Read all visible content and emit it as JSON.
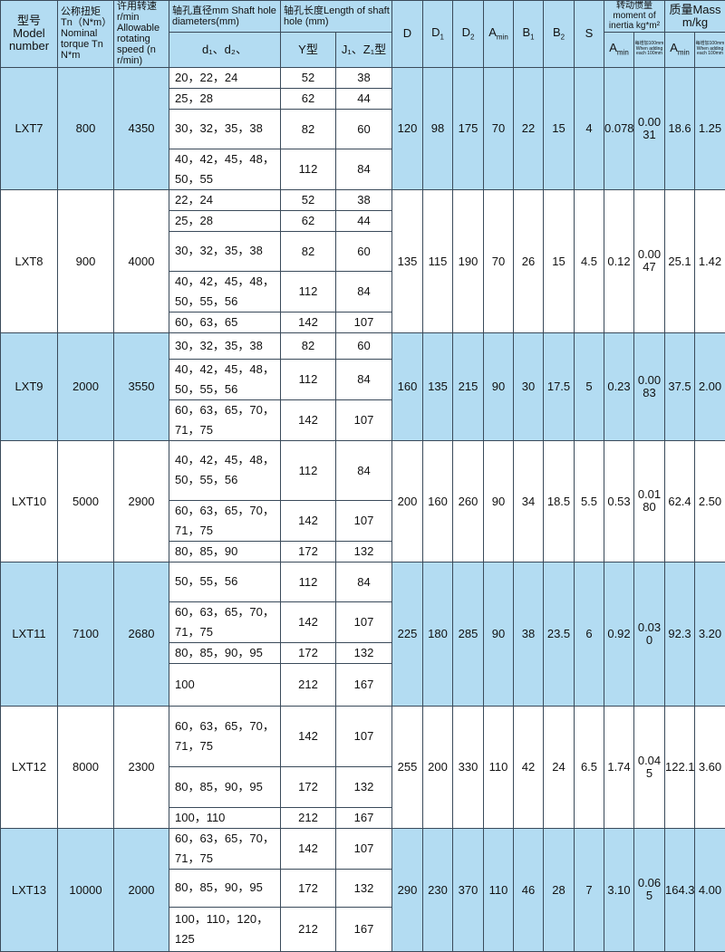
{
  "header": {
    "model": "型号 Model number",
    "torque": "公称扭矩 Tn（N*m） Nominal torque Tn N*m",
    "speed": "许用转速 r/min Allowable rotating speed (n r/min)",
    "shaft_diam": "轴孔直径mm Shaft hole diameters(mm)",
    "shaft_len": "轴孔长度Length of shaft hole (mm)",
    "d12": "d₁、d₂、",
    "y": "Y型",
    "jz": "J₁、Z₁型",
    "D": "D",
    "D1": "D",
    "D1_sub": "1",
    "D2": "D",
    "D2_sub": "2",
    "Amin": "A",
    "Amin_sub": "min",
    "B1": "B",
    "B1_sub": "1",
    "B2": "B",
    "B2_sub": "2",
    "S": "S",
    "inertia": "转动惯量moment of inertia kg*m²",
    "mass": "质量Mass m/kg",
    "inertia_amin": "A",
    "mass_amin": "A",
    "sub_min": "min",
    "adding": "每增加100mm When adding each 100mm"
  },
  "groups": [
    {
      "model": "LXT7",
      "torque": "800",
      "speed": "4350",
      "rows": [
        {
          "d": "20，22，24",
          "y": "52",
          "j": "38"
        },
        {
          "d": "25，28",
          "y": "62",
          "j": "44"
        },
        {
          "d": "30，32，35，38",
          "y": "82",
          "j": "60"
        },
        {
          "d": "40，42，45，48，\n50，55",
          "y": "112",
          "j": "84"
        }
      ],
      "D": "120",
      "D1": "98",
      "D2": "175",
      "Amin": "70",
      "B1": "22",
      "B2": "15",
      "S": "4",
      "inertia": "0.078",
      "inertia_add": "0.0031",
      "mass": "18.6",
      "mass_add": "1.25"
    },
    {
      "model": "LXT8",
      "torque": "900",
      "speed": "4000",
      "rows": [
        {
          "d": "22，24",
          "y": "52",
          "j": "38"
        },
        {
          "d": "25，28",
          "y": "62",
          "j": "44"
        },
        {
          "d": "30，32，35，38",
          "y": "82",
          "j": "60"
        },
        {
          "d": "40，42，45，48，\n50，55，56",
          "y": "112",
          "j": "84"
        },
        {
          "d": "60，63，65",
          "y": "142",
          "j": "107"
        }
      ],
      "D": "135",
      "D1": "115",
      "D2": "190",
      "Amin": "70",
      "B1": "26",
      "B2": "15",
      "S": "4.5",
      "inertia": "0.12",
      "inertia_add": "0.0047",
      "mass": "25.1",
      "mass_add": "1.42"
    },
    {
      "model": "LXT9",
      "torque": "2000",
      "speed": "3550",
      "rows": [
        {
          "d": "30，32，35，38",
          "y": "82",
          "j": "60"
        },
        {
          "d": "40，42，45，48，\n50，55，56",
          "y": "112",
          "j": "84"
        },
        {
          "d": "60，63，65，70，\n71，75",
          "y": "142",
          "j": "107"
        }
      ],
      "D": "160",
      "D1": "135",
      "D2": "215",
      "Amin": "90",
      "B1": "30",
      "B2": "17.5",
      "S": "5",
      "inertia": "0.23",
      "inertia_add": "0.0083",
      "mass": "37.5",
      "mass_add": "2.00"
    },
    {
      "model": "LXT10",
      "torque": "5000",
      "speed": "2900",
      "rows": [
        {
          "d": "40，42，45，48，\n50，55，56",
          "y": "112",
          "j": "84"
        },
        {
          "d": "60，63，65，70，\n71，75",
          "y": "142",
          "j": "107"
        },
        {
          "d": "80，85，90",
          "y": "172",
          "j": "132"
        }
      ],
      "D": "200",
      "D1": "160",
      "D2": "260",
      "Amin": "90",
      "B1": "34",
      "B2": "18.5",
      "S": "5.5",
      "inertia": "0.53",
      "inertia_add": "0.0180",
      "mass": "62.4",
      "mass_add": "2.50"
    },
    {
      "model": "LXT11",
      "torque": "7100",
      "speed": "2680",
      "rows": [
        {
          "d": "50，55，56",
          "y": "112",
          "j": "84"
        },
        {
          "d": "60，63，65，70，\n71，75",
          "y": "142",
          "j": "107"
        },
        {
          "d": "80，85，90，95",
          "y": "172",
          "j": "132"
        },
        {
          "d": "100",
          "y": "212",
          "j": "167"
        }
      ],
      "D": "225",
      "D1": "180",
      "D2": "285",
      "Amin": "90",
      "B1": "38",
      "B2": "23.5",
      "S": "6",
      "inertia": "0.92",
      "inertia_add": "0.030",
      "mass": "92.3",
      "mass_add": "3.20"
    },
    {
      "model": "LXT12",
      "torque": "8000",
      "speed": "2300",
      "rows": [
        {
          "d": "60，63，65，70，\n71，75",
          "y": "142",
          "j": "107"
        },
        {
          "d": "80，85，90，95",
          "y": "172",
          "j": "132"
        },
        {
          "d": "100，110",
          "y": "212",
          "j": "167"
        }
      ],
      "D": "255",
      "D1": "200",
      "D2": "330",
      "Amin": "110",
      "B1": "42",
      "B2": "24",
      "S": "6.5",
      "inertia": "1.74",
      "inertia_add": "0.045",
      "mass": "122.1",
      "mass_add": "3.60"
    },
    {
      "model": "LXT13",
      "torque": "10000",
      "speed": "2000",
      "rows": [
        {
          "d": "60，63，65，70，\n71，75",
          "y": "142",
          "j": "107"
        },
        {
          "d": "80，85，90，95",
          "y": "172",
          "j": "132"
        },
        {
          "d": "100，110，120，\n125",
          "y": "212",
          "j": "167"
        }
      ],
      "D": "290",
      "D1": "230",
      "D2": "370",
      "Amin": "110",
      "B1": "46",
      "B2": "28",
      "S": "7",
      "inertia": "3.10",
      "inertia_add": "0.065",
      "mass": "164.3",
      "mass_add": "4.00"
    }
  ],
  "colors": {
    "header_bg": "#b3dcf2",
    "band_bg": "#b3dcf2",
    "border": "#3a4a5a"
  }
}
